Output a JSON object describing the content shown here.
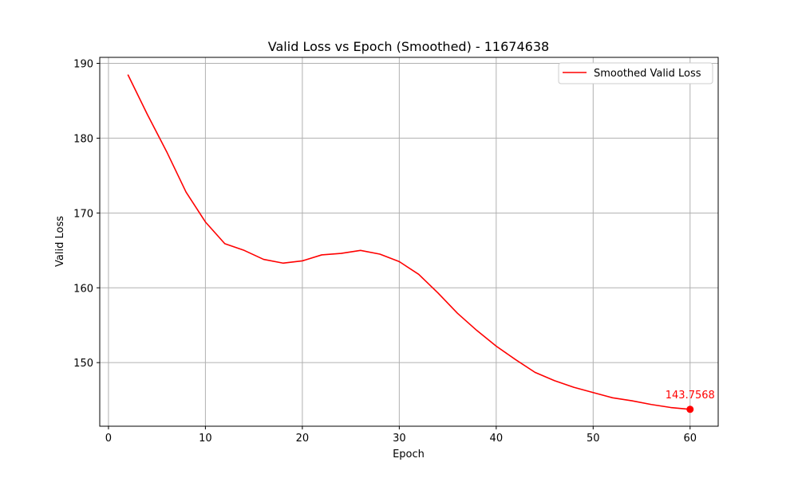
{
  "chart_data": {
    "type": "line",
    "title": "Valid Loss vs Epoch (Smoothed) - 11674638",
    "xlabel": "Epoch",
    "ylabel": "Valid Loss",
    "xlim": [
      -0.9,
      62.9
    ],
    "ylim": [
      141.5,
      190.8
    ],
    "xticks": [
      0,
      10,
      20,
      30,
      40,
      50,
      60
    ],
    "yticks": [
      150,
      160,
      170,
      180,
      190
    ],
    "grid": true,
    "legend_position": "top-right",
    "series": [
      {
        "name": "Smoothed Valid Loss",
        "color": "#ff0000",
        "x": [
          2,
          4,
          6,
          8,
          10,
          12,
          14,
          16,
          18,
          20,
          22,
          24,
          26,
          28,
          30,
          32,
          34,
          36,
          38,
          40,
          42,
          44,
          46,
          48,
          50,
          52,
          54,
          56,
          58,
          60
        ],
        "y": [
          188.5,
          183.2,
          178.2,
          172.8,
          168.8,
          165.9,
          165.0,
          163.8,
          163.3,
          163.6,
          164.4,
          164.6,
          165.0,
          164.5,
          163.5,
          161.8,
          159.3,
          156.6,
          154.3,
          152.2,
          150.4,
          148.7,
          147.6,
          146.7,
          146.0,
          145.3,
          144.9,
          144.4,
          144.0,
          143.7568
        ]
      }
    ],
    "annotations": [
      {
        "x": 60,
        "y": 143.7568,
        "text": "143.7568",
        "color": "#ff0000"
      }
    ]
  }
}
